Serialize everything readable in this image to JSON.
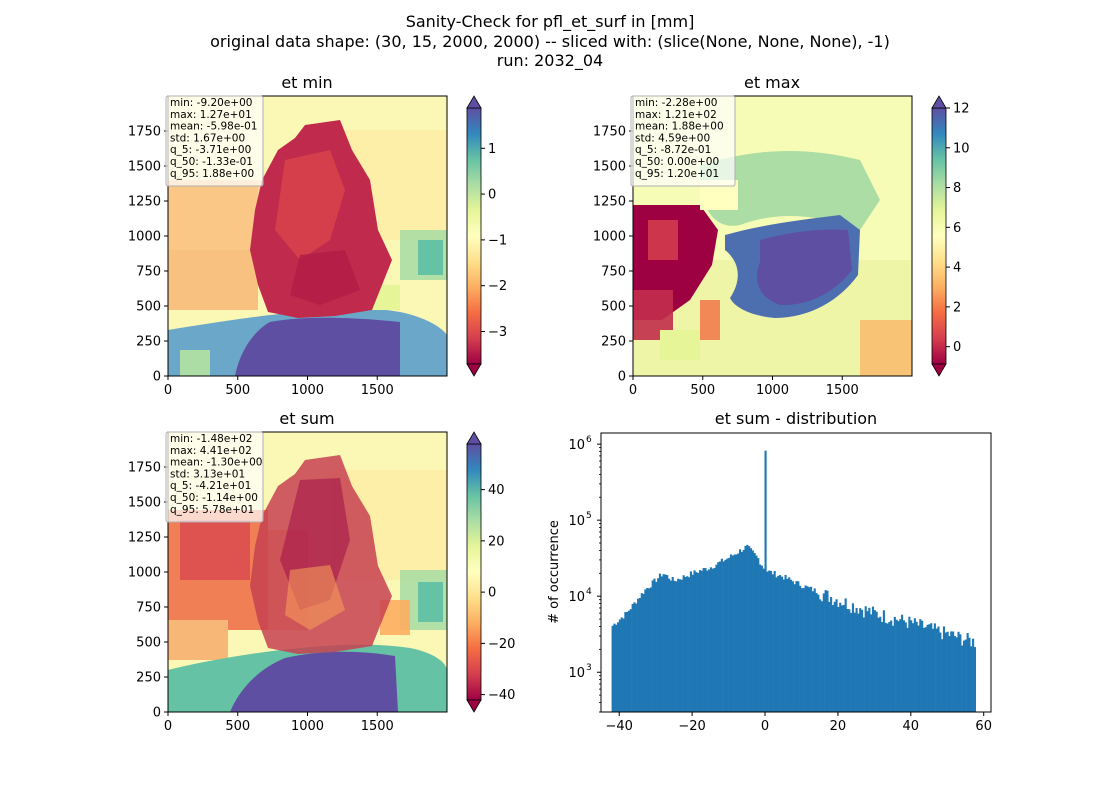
{
  "figure": {
    "title_lines": [
      "Sanity-Check for pfl_et_surf in [mm]",
      "original data shape: (30, 15, 2000, 2000) -- sliced with: (slice(None, None, None), -1)",
      "run: 2032_04"
    ]
  },
  "chart_data": [
    {
      "type": "heatmap",
      "title": "et min",
      "x_ticks": [
        "0",
        "500",
        "1000",
        "1500"
      ],
      "y_ticks": [
        "0",
        "250",
        "500",
        "750",
        "1000",
        "1250",
        "1500",
        "1750"
      ],
      "xlim": [
        0,
        2000
      ],
      "ylim": [
        0,
        2000
      ],
      "colormap": "Spectral",
      "colorbar": {
        "range": [
          -3.71,
          1.88
        ],
        "ticks": [
          "−3",
          "−2",
          "−1",
          "0",
          "1"
        ],
        "tick_values": [
          -3,
          -2,
          -1,
          0,
          1
        ],
        "extend": "both"
      },
      "stats": [
        "min: -9.20e+00",
        "max: 1.27e+01",
        "mean: -5.98e-01",
        "std: 1.67e+00",
        "q_5: -3.71e+00",
        "q_50: -1.33e-01",
        "q_95: 1.88e+00"
      ]
    },
    {
      "type": "heatmap",
      "title": "et max",
      "x_ticks": [
        "0",
        "500",
        "1000",
        "1500"
      ],
      "y_ticks": [
        "0",
        "250",
        "500",
        "750",
        "1000",
        "1250",
        "1500",
        "1750"
      ],
      "xlim": [
        0,
        2000
      ],
      "ylim": [
        0,
        2000
      ],
      "colormap": "Spectral",
      "colorbar": {
        "range": [
          -0.872,
          12.0
        ],
        "ticks": [
          "0",
          "2",
          "4",
          "6",
          "8",
          "10",
          "12"
        ],
        "tick_values": [
          0,
          2,
          4,
          6,
          8,
          10,
          12
        ],
        "extend": "both"
      },
      "stats": [
        "min: -2.28e+00",
        "max: 1.21e+02",
        "mean: 1.88e+00",
        "std: 4.59e+00",
        "q_5: -8.72e-01",
        "q_50: 0.00e+00",
        "q_95: 1.20e+01"
      ]
    },
    {
      "type": "heatmap",
      "title": "et sum",
      "x_ticks": [
        "0",
        "500",
        "1000",
        "1500"
      ],
      "y_ticks": [
        "0",
        "250",
        "500",
        "750",
        "1000",
        "1250",
        "1500",
        "1750"
      ],
      "xlim": [
        0,
        2000
      ],
      "ylim": [
        0,
        2000
      ],
      "colormap": "Spectral",
      "colorbar": {
        "range": [
          -42.1,
          57.8
        ],
        "ticks": [
          "−40",
          "−20",
          "0",
          "20",
          "40"
        ],
        "tick_values": [
          -40,
          -20,
          0,
          20,
          40
        ],
        "extend": "both"
      },
      "stats": [
        "min: -1.48e+02",
        "max: 4.41e+02",
        "mean: -1.30e+00",
        "std: 3.13e+01",
        "q_5: -4.21e+01",
        "q_50: -1.14e+00",
        "q_95: 5.78e+01"
      ]
    },
    {
      "type": "bar",
      "title": "et sum - distribution",
      "xlabel": "",
      "ylabel": "# of occurrence",
      "y_scale": "log",
      "xlim": [
        -45,
        62
      ],
      "ylim": [
        300,
        1400000
      ],
      "x_ticks": [
        "−40",
        "−20",
        "0",
        "20",
        "40",
        "60"
      ],
      "x_tick_values": [
        -40,
        -20,
        0,
        20,
        40,
        60
      ],
      "y_ticks": [
        "10",
        "10",
        "10",
        "10"
      ],
      "y_tick_exponents": [
        "3",
        "4",
        "5",
        "6"
      ],
      "y_tick_values": [
        1000,
        10000,
        100000,
        1000000
      ],
      "color": "#1f77b4",
      "bin_range": [
        -42.1,
        57.8
      ],
      "bin_count": 200,
      "histogram_profile": [
        {
          "x": -42.1,
          "count": 4000
        },
        {
          "x": -38,
          "count": 6000
        },
        {
          "x": -33,
          "count": 12000
        },
        {
          "x": -28,
          "count": 20000
        },
        {
          "x": -25,
          "count": 16000
        },
        {
          "x": -20,
          "count": 20000
        },
        {
          "x": -15,
          "count": 24000
        },
        {
          "x": -10,
          "count": 32000
        },
        {
          "x": -5,
          "count": 45000
        },
        {
          "x": -2,
          "count": 32000
        },
        {
          "x": 0,
          "count": 22000
        },
        {
          "x": 5,
          "count": 18000
        },
        {
          "x": 10,
          "count": 14000
        },
        {
          "x": 20,
          "count": 9000
        },
        {
          "x": 30,
          "count": 6000
        },
        {
          "x": 40,
          "count": 4500
        },
        {
          "x": 50,
          "count": 3200
        },
        {
          "x": 57.8,
          "count": 2500
        }
      ],
      "spike": {
        "x": 0,
        "count": 820000
      }
    }
  ]
}
